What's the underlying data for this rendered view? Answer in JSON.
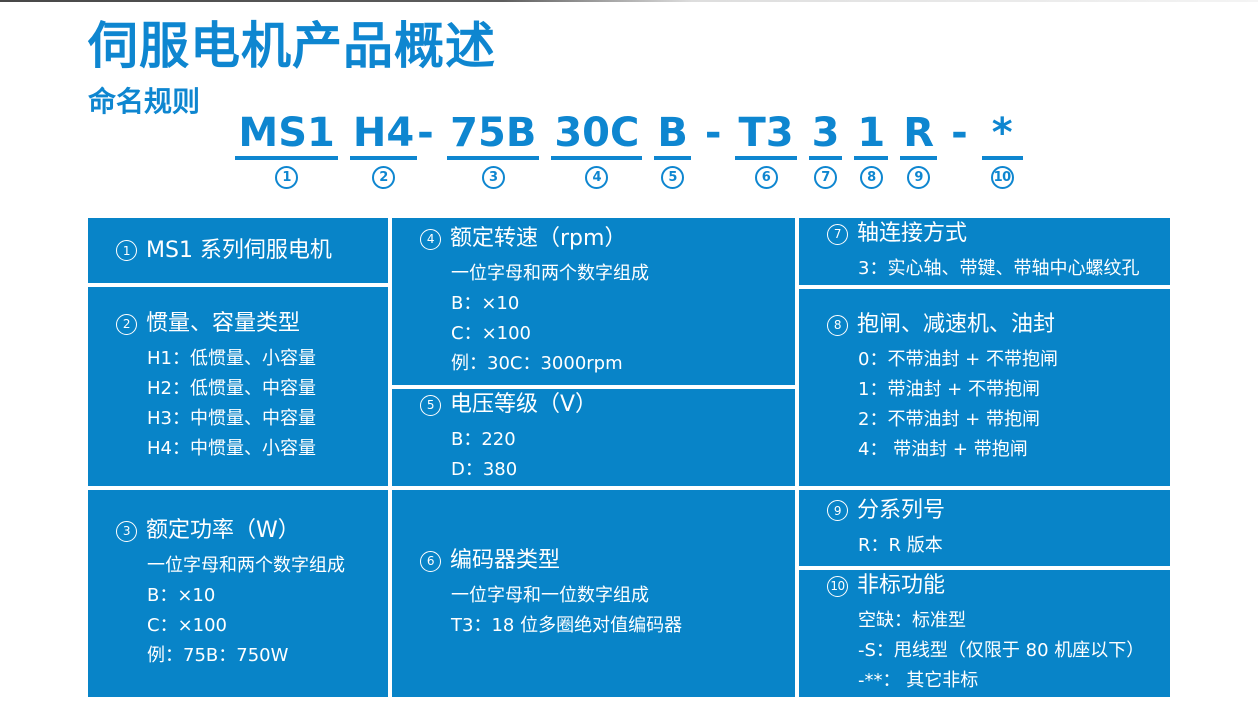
{
  "page": {
    "title": "伺服电机产品概述",
    "subtitle": "命名规则"
  },
  "colors": {
    "blue_background": "#0884C8",
    "blue_text": "#0E86D0",
    "cell_text": "#FFFFFF"
  },
  "model": {
    "full_code": "MS1 H4- 75B 30C B - T3 3 1 R - *",
    "parts": [
      {
        "text": "MS1",
        "num": "1"
      },
      {
        "text": "H4",
        "num": "2",
        "suffix": "-"
      },
      {
        "text": "75B",
        "num": "3"
      },
      {
        "text": "30C",
        "num": "4"
      },
      {
        "text": "B",
        "num": "5"
      },
      {
        "separator": "-"
      },
      {
        "text": "T3",
        "num": "6"
      },
      {
        "text": "3",
        "num": "7"
      },
      {
        "text": "1",
        "num": "8"
      },
      {
        "text": "R",
        "num": "9"
      },
      {
        "separator": "-"
      },
      {
        "text": "*",
        "num": "10"
      }
    ]
  },
  "table": {
    "cells": [
      {
        "num": "1",
        "title": "MS1 系列伺服电机",
        "items": []
      },
      {
        "num": "2",
        "title": "惯量、容量类型",
        "items": [
          "H1：低惯量、小容量",
          "H2：低惯量、中容量",
          "H3：中惯量、中容量",
          "H4：中惯量、小容量"
        ]
      },
      {
        "num": "3",
        "title": "额定功率（W）",
        "items": [
          "一位字母和两个数字组成",
          "B：×10",
          "C：×100",
          "例：75B：750W"
        ]
      },
      {
        "num": "4",
        "title": "额定转速（rpm）",
        "items": [
          "一位字母和两个数字组成",
          "B：×10",
          "C：×100",
          "例：30C：3000rpm"
        ]
      },
      {
        "num": "5",
        "title": "电压等级（V）",
        "items": [
          "B：220",
          "D：380"
        ]
      },
      {
        "num": "6",
        "title": "编码器类型",
        "items": [
          "一位字母和一位数字组成",
          "T3：18 位多圈绝对值编码器"
        ]
      },
      {
        "num": "7",
        "title": "轴连接方式",
        "items": [
          "3：实心轴、带键、带轴中心螺纹孔"
        ]
      },
      {
        "num": "8",
        "title": "抱闸、减速机、油封",
        "items": [
          "0：不带油封 + 不带抱闸",
          "1：带油封 + 不带抱闸",
          "2：不带油封 + 带抱闸",
          "4： 带油封 + 带抱闸"
        ]
      },
      {
        "num": "9",
        "title": "分系列号",
        "items": [
          "R：R 版本"
        ]
      },
      {
        "num": "10",
        "title": "非标功能",
        "items": [
          "空缺：标准型",
          "-S：甩线型（仅限于 80 机座以下）",
          "-**： 其它非标"
        ]
      }
    ]
  }
}
